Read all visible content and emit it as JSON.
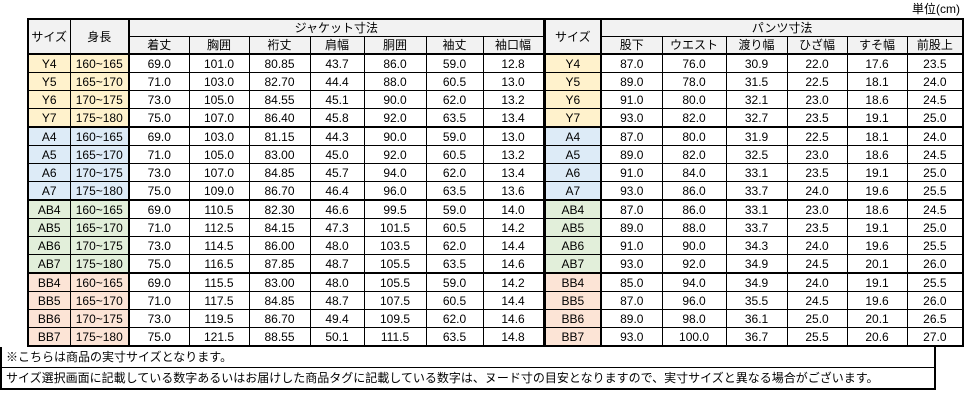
{
  "unit_label": "単位(cm)",
  "table": {
    "headers": {
      "size": "サイズ",
      "height": "身長",
      "jacket_group": "ジャケット寸法",
      "pants_group": "パンツ寸法",
      "jacket_cols": [
        "着丈",
        "胸囲",
        "裄丈",
        "肩幅",
        "胴囲",
        "袖丈",
        "袖口幅"
      ],
      "pants_cols": [
        "股下",
        "ウエスト",
        "渡り幅",
        "ひざ幅",
        "すそ幅",
        "前股上"
      ]
    },
    "rows": [
      {
        "size": "Y4",
        "group": "y",
        "height": "160~165",
        "jacket": [
          "69.0",
          "101.0",
          "80.85",
          "43.7",
          "86.0",
          "59.0",
          "12.8"
        ],
        "pants": [
          "87.0",
          "76.0",
          "30.9",
          "22.0",
          "17.6",
          "23.5"
        ]
      },
      {
        "size": "Y5",
        "group": "y",
        "height": "165~170",
        "jacket": [
          "71.0",
          "103.0",
          "82.70",
          "44.4",
          "88.0",
          "60.5",
          "13.0"
        ],
        "pants": [
          "89.0",
          "78.0",
          "31.5",
          "22.5",
          "18.1",
          "24.0"
        ]
      },
      {
        "size": "Y6",
        "group": "y",
        "height": "170~175",
        "jacket": [
          "73.0",
          "105.0",
          "84.55",
          "45.1",
          "90.0",
          "62.0",
          "13.2"
        ],
        "pants": [
          "91.0",
          "80.0",
          "32.1",
          "23.0",
          "18.6",
          "24.5"
        ]
      },
      {
        "size": "Y7",
        "group": "y",
        "height": "175~180",
        "jacket": [
          "75.0",
          "107.0",
          "86.40",
          "45.8",
          "92.0",
          "63.5",
          "13.4"
        ],
        "pants": [
          "93.0",
          "82.0",
          "32.7",
          "23.5",
          "19.1",
          "25.0"
        ]
      },
      {
        "size": "A4",
        "group": "a",
        "height": "160~165",
        "jacket": [
          "69.0",
          "103.0",
          "81.15",
          "44.3",
          "90.0",
          "59.0",
          "13.0"
        ],
        "pants": [
          "87.0",
          "80.0",
          "31.9",
          "22.5",
          "18.1",
          "24.0"
        ]
      },
      {
        "size": "A5",
        "group": "a",
        "height": "165~170",
        "jacket": [
          "71.0",
          "105.0",
          "83.00",
          "45.0",
          "92.0",
          "60.5",
          "13.2"
        ],
        "pants": [
          "89.0",
          "82.0",
          "32.5",
          "23.0",
          "18.6",
          "24.5"
        ]
      },
      {
        "size": "A6",
        "group": "a",
        "height": "170~175",
        "jacket": [
          "73.0",
          "107.0",
          "84.85",
          "45.7",
          "94.0",
          "62.0",
          "13.4"
        ],
        "pants": [
          "91.0",
          "84.0",
          "33.1",
          "23.5",
          "19.1",
          "25.0"
        ]
      },
      {
        "size": "A7",
        "group": "a",
        "height": "175~180",
        "jacket": [
          "75.0",
          "109.0",
          "86.70",
          "46.4",
          "96.0",
          "63.5",
          "13.6"
        ],
        "pants": [
          "93.0",
          "86.0",
          "33.7",
          "24.0",
          "19.6",
          "25.5"
        ]
      },
      {
        "size": "AB4",
        "group": "ab",
        "height": "160~165",
        "jacket": [
          "69.0",
          "110.5",
          "82.30",
          "46.6",
          "99.5",
          "59.0",
          "14.0"
        ],
        "pants": [
          "87.0",
          "86.0",
          "33.1",
          "23.0",
          "18.6",
          "24.5"
        ]
      },
      {
        "size": "AB5",
        "group": "ab",
        "height": "165~170",
        "jacket": [
          "71.0",
          "112.5",
          "84.15",
          "47.3",
          "101.5",
          "60.5",
          "14.2"
        ],
        "pants": [
          "89.0",
          "88.0",
          "33.7",
          "23.5",
          "19.1",
          "25.0"
        ]
      },
      {
        "size": "AB6",
        "group": "ab",
        "height": "170~175",
        "jacket": [
          "73.0",
          "114.5",
          "86.00",
          "48.0",
          "103.5",
          "62.0",
          "14.4"
        ],
        "pants": [
          "91.0",
          "90.0",
          "34.3",
          "24.0",
          "19.6",
          "25.5"
        ]
      },
      {
        "size": "AB7",
        "group": "ab",
        "height": "175~180",
        "jacket": [
          "75.0",
          "116.5",
          "87.85",
          "48.7",
          "105.5",
          "63.5",
          "14.6"
        ],
        "pants": [
          "93.0",
          "92.0",
          "34.9",
          "24.5",
          "20.1",
          "26.0"
        ]
      },
      {
        "size": "BB4",
        "group": "bb",
        "height": "160~165",
        "jacket": [
          "69.0",
          "115.5",
          "83.00",
          "48.0",
          "105.5",
          "59.0",
          "14.2"
        ],
        "pants": [
          "85.0",
          "94.0",
          "34.9",
          "24.0",
          "19.1",
          "25.5"
        ]
      },
      {
        "size": "BB5",
        "group": "bb",
        "height": "165~170",
        "jacket": [
          "71.0",
          "117.5",
          "84.85",
          "48.7",
          "107.5",
          "60.5",
          "14.4"
        ],
        "pants": [
          "87.0",
          "96.0",
          "35.5",
          "24.5",
          "19.6",
          "26.0"
        ]
      },
      {
        "size": "BB6",
        "group": "bb",
        "height": "170~175",
        "jacket": [
          "73.0",
          "119.5",
          "86.70",
          "49.4",
          "109.5",
          "62.0",
          "14.6"
        ],
        "pants": [
          "89.0",
          "98.0",
          "36.1",
          "25.0",
          "20.1",
          "26.5"
        ]
      },
      {
        "size": "BB7",
        "group": "bb",
        "height": "175~180",
        "jacket": [
          "75.0",
          "121.5",
          "88.55",
          "50.1",
          "111.5",
          "63.5",
          "14.8"
        ],
        "pants": [
          "93.0",
          "100.0",
          "36.7",
          "25.5",
          "20.6",
          "27.0"
        ]
      }
    ]
  },
  "notes": [
    "※こちらは商品の実寸サイズとなります。",
    "サイズ選択画面に記載している数字あるいはお届けした商品タグに記載している数字は、ヌード寸の目安となりますので、実寸サイズと異なる場合がございます。"
  ],
  "colors": {
    "group_y": "#FFF2CC",
    "group_a": "#DDEBF7",
    "group_ab": "#E2EFDA",
    "group_bb": "#FCE4D6",
    "header_bg": "#F2F2F2",
    "border": "#000000"
  }
}
